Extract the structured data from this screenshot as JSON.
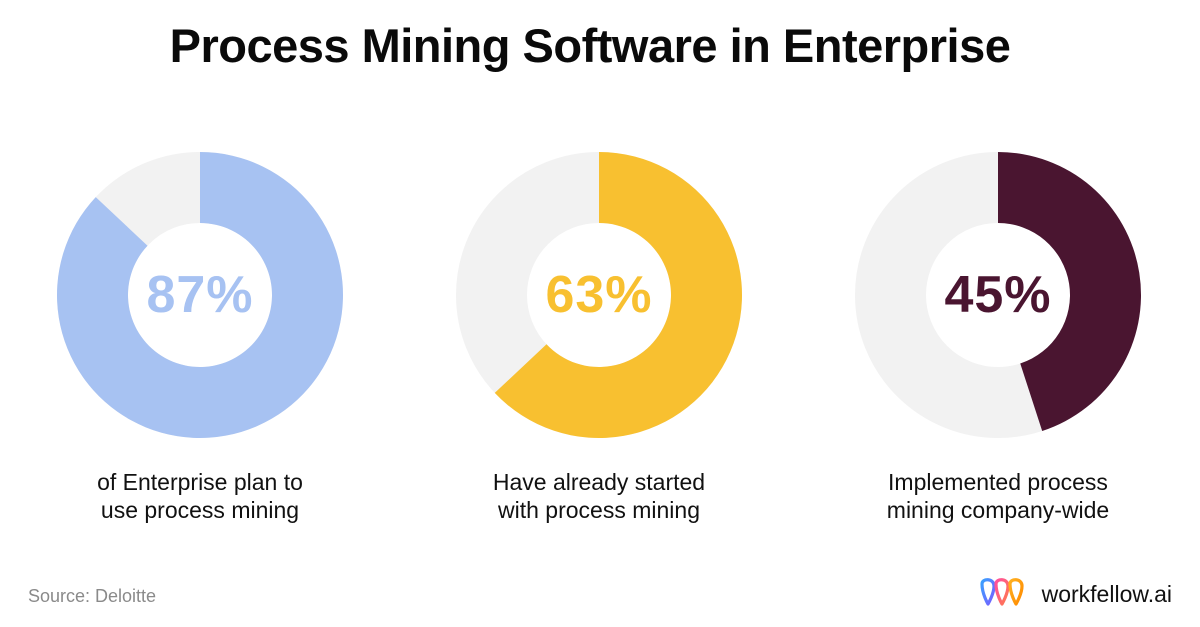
{
  "title": "Process Mining Software in Enterprise",
  "source": "Source: Deloitte",
  "brand": {
    "name": "workfellow.ai",
    "logo_icon": "workfellow-logo-icon"
  },
  "track_color": "#f2f2f2",
  "chart_data": [
    {
      "type": "pie",
      "variant": "donut",
      "value": 87,
      "label": "87%",
      "caption_lines": [
        "of Enterprise plan to",
        "use process mining"
      ],
      "color": "#a7c2f2"
    },
    {
      "type": "pie",
      "variant": "donut",
      "value": 63,
      "label": "63%",
      "caption_lines": [
        "Have already started",
        "with process mining"
      ],
      "color": "#f8c030"
    },
    {
      "type": "pie",
      "variant": "donut",
      "value": 45,
      "label": "45%",
      "caption_lines": [
        "Implemented process",
        "mining company-wide"
      ],
      "color": "#4a1530"
    }
  ]
}
